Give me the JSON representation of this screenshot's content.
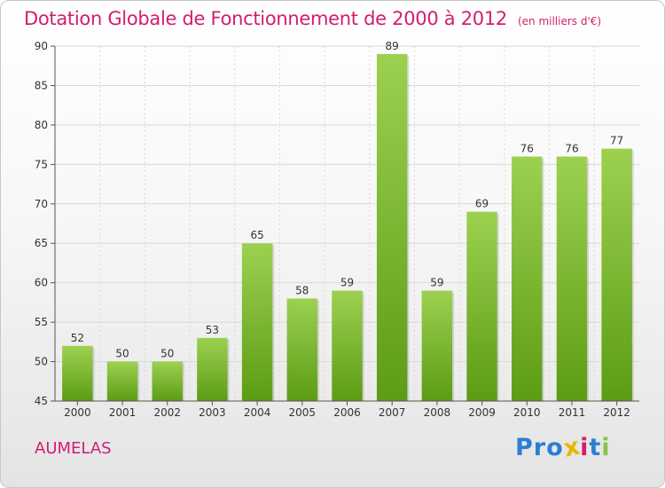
{
  "title": "Dotation Globale de Fonctionnement de 2000 à 2012",
  "subtitle": "(en milliers d'€)",
  "town": "AUMELAS",
  "logo": {
    "letters": [
      "P",
      "r",
      "o",
      "x",
      "i",
      "t",
      "i"
    ],
    "colors": [
      "#2a7fd4",
      "#2a7fd4",
      "#2a7fd4",
      "#e8b600",
      "#d21e6e",
      "#2a7fd4",
      "#8bc34a"
    ]
  },
  "colors": {
    "title": "#d21e6e",
    "bar_top": "#9cd150",
    "bar_bottom": "#5c9c14",
    "grid": "#d8d8d8"
  },
  "chart_data": {
    "type": "bar",
    "categories": [
      "2000",
      "2001",
      "2002",
      "2003",
      "2004",
      "2005",
      "2006",
      "2007",
      "2008",
      "2009",
      "2010",
      "2011",
      "2012"
    ],
    "values": [
      52,
      50,
      50,
      53,
      65,
      58,
      59,
      89,
      59,
      69,
      76,
      76,
      77
    ],
    "title": "Dotation Globale de Fonctionnement de 2000 à 2012",
    "subtitle": "(en milliers d'€)",
    "ylim": [
      45,
      90
    ],
    "yticks": [
      45,
      50,
      55,
      60,
      65,
      70,
      75,
      80,
      85,
      90
    ],
    "grid": true,
    "data_labels": true
  }
}
